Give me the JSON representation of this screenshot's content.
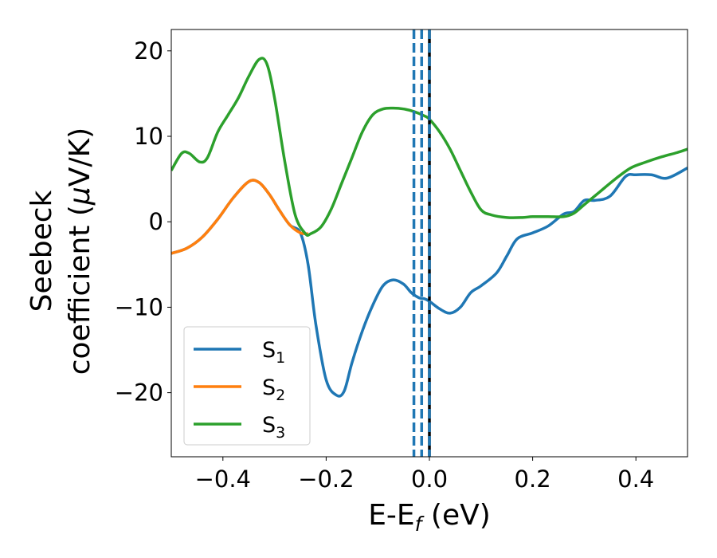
{
  "chart_data": {
    "type": "line",
    "xlabel": "E-E",
    "xlabel_sub": "f",
    "xlabel_unit": " (eV)",
    "ylabel_line1": "Seebeck",
    "ylabel_line2_prefix": "coefficient  (",
    "ylabel_mu": "μ",
    "ylabel_line2_suffix": "V/K)",
    "xlim": [
      -0.5,
      0.5
    ],
    "ylim": [
      -27.5,
      22.5
    ],
    "xticks": [
      -0.4,
      -0.2,
      0.0,
      0.2,
      0.4
    ],
    "xtick_labels": [
      "−0.4",
      "−0.2",
      "0.0",
      "0.2",
      "0.4"
    ],
    "yticks": [
      -20,
      -10,
      0,
      10,
      20
    ],
    "ytick_labels": [
      "−20",
      "−10",
      "0",
      "10",
      "20"
    ],
    "grid": false,
    "legend_position": "lower-left",
    "vlines": [
      {
        "x": -0.03,
        "style": "dashed",
        "color": "#1f77b4"
      },
      {
        "x": -0.015,
        "style": "dashed",
        "color": "#1f77b4"
      },
      {
        "x": 0.0,
        "style": "solid",
        "color": "#000000"
      },
      {
        "x": 0.0,
        "style": "dashed",
        "color": "#1f77b4"
      }
    ],
    "series": [
      {
        "name": "S",
        "sub": "1",
        "color": "#1f77b4",
        "x": [
          -0.5,
          -0.47,
          -0.44,
          -0.41,
          -0.38,
          -0.35,
          -0.33,
          -0.31,
          -0.29,
          -0.27,
          -0.25,
          -0.235,
          -0.22,
          -0.2,
          -0.18,
          -0.165,
          -0.15,
          -0.13,
          -0.11,
          -0.09,
          -0.07,
          -0.05,
          -0.035,
          -0.02,
          -0.01,
          0.0,
          0.02,
          0.04,
          0.06,
          0.08,
          0.1,
          0.13,
          0.15,
          0.17,
          0.2,
          0.23,
          0.26,
          0.28,
          0.3,
          0.32,
          0.35,
          0.38,
          0.4,
          0.43,
          0.46,
          0.5
        ],
        "y": [
          -3.7,
          -3.1,
          -1.8,
          0.3,
          2.8,
          4.7,
          4.6,
          3.2,
          1.3,
          -0.4,
          -1.3,
          -5.0,
          -12.0,
          -18.5,
          -20.3,
          -19.8,
          -16.5,
          -12.8,
          -9.8,
          -7.5,
          -6.8,
          -7.3,
          -8.3,
          -8.9,
          -9.0,
          -9.3,
          -10.2,
          -10.7,
          -10.0,
          -8.3,
          -7.5,
          -6.0,
          -4.0,
          -2.0,
          -1.3,
          -0.5,
          0.9,
          1.2,
          2.5,
          2.5,
          3.0,
          5.3,
          5.5,
          5.5,
          5.1,
          6.3
        ]
      },
      {
        "name": "S",
        "sub": "2",
        "color": "#ff7f0e",
        "x": [
          -0.5,
          -0.47,
          -0.44,
          -0.41,
          -0.38,
          -0.35,
          -0.33,
          -0.31,
          -0.29,
          -0.27,
          -0.25,
          -0.235
        ],
        "y": [
          -3.7,
          -3.1,
          -1.8,
          0.3,
          2.8,
          4.7,
          4.6,
          3.2,
          1.3,
          -0.4,
          -1.3,
          -1.4
        ]
      },
      {
        "name": "S",
        "sub": "3",
        "color": "#2ca02c",
        "x": [
          -0.5,
          -0.48,
          -0.465,
          -0.445,
          -0.43,
          -0.41,
          -0.39,
          -0.37,
          -0.35,
          -0.33,
          -0.315,
          -0.3,
          -0.28,
          -0.26,
          -0.24,
          -0.23,
          -0.21,
          -0.19,
          -0.17,
          -0.15,
          -0.13,
          -0.11,
          -0.09,
          -0.07,
          -0.05,
          -0.03,
          -0.01,
          0.0,
          0.02,
          0.04,
          0.06,
          0.08,
          0.1,
          0.12,
          0.15,
          0.18,
          0.2,
          0.23,
          0.26,
          0.28,
          0.3,
          0.33,
          0.36,
          0.39,
          0.42,
          0.45,
          0.48,
          0.5
        ],
        "y": [
          6.0,
          8.0,
          8.0,
          7.0,
          7.5,
          10.5,
          12.5,
          14.5,
          17.0,
          19.0,
          18.5,
          14.5,
          7.0,
          0.8,
          -1.4,
          -1.4,
          -0.6,
          1.5,
          4.5,
          7.5,
          10.5,
          12.5,
          13.2,
          13.3,
          13.2,
          12.9,
          12.4,
          12.0,
          10.5,
          8.5,
          6.0,
          3.5,
          1.4,
          0.8,
          0.5,
          0.5,
          0.6,
          0.6,
          0.6,
          1.0,
          2.0,
          3.5,
          5.0,
          6.3,
          7.0,
          7.6,
          8.1,
          8.5
        ]
      }
    ]
  }
}
